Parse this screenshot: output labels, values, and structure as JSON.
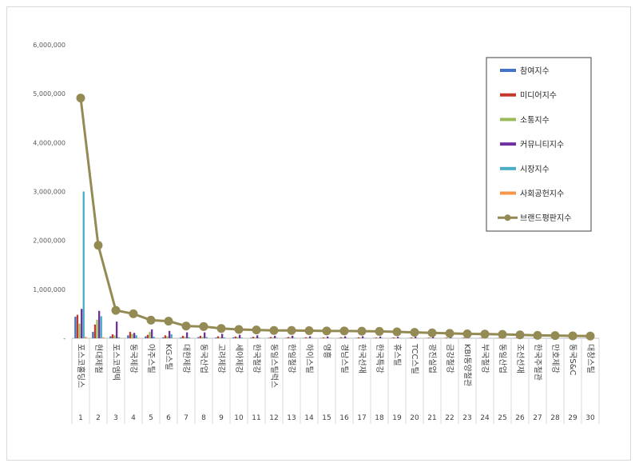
{
  "chart_data": {
    "type": "bar",
    "title": "",
    "xlabel": "",
    "ylabel": "",
    "ylim": [
      0,
      6000000
    ],
    "yticks": [
      0,
      1000000,
      2000000,
      3000000,
      4000000,
      5000000,
      6000000
    ],
    "ytick_labels": [
      "-",
      "1,000,000",
      "2,000,000",
      "3,000,000",
      "4,000,000",
      "5,000,000",
      "6,000,000"
    ],
    "grid": false,
    "legend_position": "top-right",
    "categories": [
      "1",
      "2",
      "3",
      "4",
      "5",
      "6",
      "7",
      "8",
      "9",
      "10",
      "11",
      "12",
      "13",
      "14",
      "15",
      "16",
      "17",
      "18",
      "19",
      "20",
      "21",
      "22",
      "23",
      "24",
      "25",
      "26",
      "27",
      "28",
      "29",
      "30"
    ],
    "category_names": [
      "포스코홀딩스",
      "현대제철",
      "포스코엠텍",
      "동국제강",
      "아주스틸",
      "KG스틸",
      "대한제강",
      "동국산업",
      "고려제강",
      "세아제강",
      "한국철강",
      "동일스틸럭스",
      "한일철강",
      "하이스틸",
      "영흥",
      "경남스틸",
      "한국선재",
      "한국특강",
      "휴스틸",
      "TCC스틸",
      "광진실업",
      "금강철강",
      "KBI동양철관",
      "부국철강",
      "동일산업",
      "조선선재",
      "한국주철관",
      "만호제강",
      "동국S&C",
      "대창스틸"
    ],
    "series": [
      {
        "name": "참여지수",
        "kind": "bar",
        "color": "#4472c4",
        "values": [
          440000,
          130000,
          40000,
          60000,
          40000,
          20000,
          15000,
          25000,
          15000,
          20000,
          12000,
          10000,
          10000,
          8000,
          6000,
          8000,
          8000,
          6000,
          6000,
          6000,
          5000,
          5000,
          5000,
          5000,
          4000,
          4000,
          4000,
          4000,
          3000,
          3000
        ]
      },
      {
        "name": "미디어지수",
        "kind": "bar",
        "color": "#c0392b",
        "values": [
          480000,
          280000,
          80000,
          130000,
          70000,
          60000,
          50000,
          50000,
          40000,
          35000,
          30000,
          25000,
          25000,
          20000,
          15000,
          20000,
          20000,
          15000,
          15000,
          15000,
          12000,
          12000,
          12000,
          10000,
          10000,
          10000,
          8000,
          8000,
          7000,
          7000
        ]
      },
      {
        "name": "소통지수",
        "kind": "bar",
        "color": "#9bbb59",
        "values": [
          300000,
          380000,
          60000,
          90000,
          130000,
          40000,
          30000,
          30000,
          25000,
          25000,
          20000,
          20000,
          20000,
          15000,
          12000,
          15000,
          15000,
          12000,
          12000,
          12000,
          10000,
          10000,
          10000,
          8000,
          8000,
          8000,
          7000,
          7000,
          6000,
          6000
        ]
      },
      {
        "name": "커뮤니티지수",
        "kind": "bar",
        "color": "#7030a0",
        "values": [
          600000,
          560000,
          340000,
          110000,
          180000,
          150000,
          120000,
          120000,
          90000,
          70000,
          60000,
          50000,
          50000,
          40000,
          35000,
          40000,
          40000,
          35000,
          30000,
          30000,
          25000,
          25000,
          25000,
          20000,
          20000,
          18000,
          15000,
          15000,
          12000,
          12000
        ]
      },
      {
        "name": "시장지수",
        "kind": "bar",
        "color": "#4bacc6",
        "values": [
          3000000,
          450000,
          20000,
          60000,
          30000,
          80000,
          20000,
          25000,
          20000,
          15000,
          12000,
          10000,
          10000,
          8000,
          6000,
          8000,
          8000,
          6000,
          6000,
          6000,
          5000,
          5000,
          5000,
          4000,
          4000,
          4000,
          3000,
          3000,
          3000,
          3000
        ]
      },
      {
        "name": "사회공헌지수",
        "kind": "bar",
        "color": "#f79646",
        "values": [
          30000,
          20000,
          5000,
          8000,
          5000,
          5000,
          3000,
          3000,
          3000,
          3000,
          2000,
          2000,
          2000,
          2000,
          2000,
          2000,
          2000,
          2000,
          2000,
          2000,
          1000,
          1000,
          1000,
          1000,
          1000,
          1000,
          1000,
          1000,
          1000,
          1000
        ]
      },
      {
        "name": "브랜드평판지수",
        "kind": "line",
        "color": "#948a54",
        "values": [
          4910000,
          1900000,
          570000,
          500000,
          370000,
          350000,
          250000,
          240000,
          200000,
          180000,
          170000,
          160000,
          160000,
          155000,
          150000,
          150000,
          145000,
          140000,
          130000,
          120000,
          110000,
          100000,
          90000,
          85000,
          80000,
          70000,
          60000,
          55000,
          50000,
          45000
        ]
      }
    ]
  }
}
